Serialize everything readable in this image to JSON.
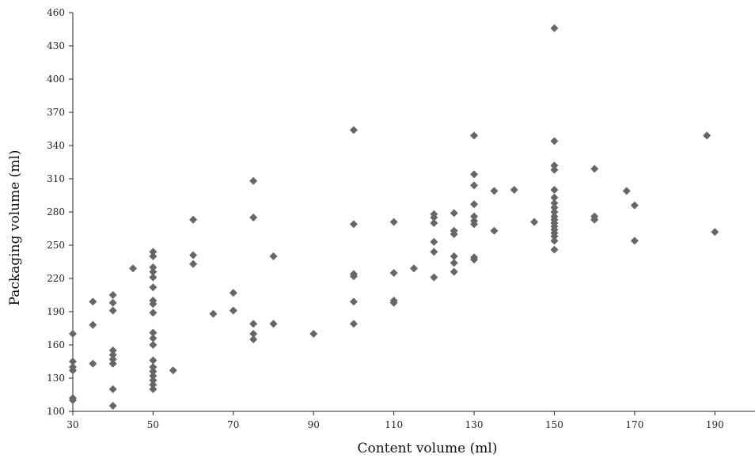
{
  "chart_data": {
    "type": "scatter",
    "title": "",
    "xlabel": "Content volume (ml)",
    "ylabel": "Packaging volume (ml)",
    "xlim": [
      30,
      200
    ],
    "ylim": [
      100,
      460
    ],
    "x_ticks": [
      30,
      50,
      70,
      90,
      110,
      130,
      150,
      170,
      190
    ],
    "y_ticks": [
      100,
      130,
      160,
      190,
      220,
      250,
      280,
      310,
      340,
      370,
      400,
      430,
      460
    ],
    "grid": false,
    "legend": "none",
    "marker": "diamond",
    "marker_color": "#666666",
    "series": [
      {
        "points": [
          [
            30,
            170
          ],
          [
            30,
            145
          ],
          [
            30,
            140
          ],
          [
            30,
            137
          ],
          [
            30,
            112
          ],
          [
            30,
            110
          ],
          [
            35,
            199
          ],
          [
            35,
            178
          ],
          [
            35,
            143
          ],
          [
            40,
            205
          ],
          [
            40,
            198
          ],
          [
            40,
            191
          ],
          [
            40,
            155
          ],
          [
            40,
            151
          ],
          [
            40,
            147
          ],
          [
            40,
            143
          ],
          [
            40,
            120
          ],
          [
            40,
            105
          ],
          [
            45,
            229
          ],
          [
            50,
            244
          ],
          [
            50,
            240
          ],
          [
            50,
            230
          ],
          [
            50,
            226
          ],
          [
            50,
            221
          ],
          [
            50,
            212
          ],
          [
            50,
            200
          ],
          [
            50,
            197
          ],
          [
            50,
            189
          ],
          [
            50,
            171
          ],
          [
            50,
            166
          ],
          [
            50,
            160
          ],
          [
            50,
            146
          ],
          [
            50,
            140
          ],
          [
            50,
            136
          ],
          [
            50,
            132
          ],
          [
            50,
            128
          ],
          [
            50,
            124
          ],
          [
            50,
            120
          ],
          [
            55,
            137
          ],
          [
            60,
            273
          ],
          [
            60,
            241
          ],
          [
            60,
            233
          ],
          [
            65,
            188
          ],
          [
            70,
            207
          ],
          [
            70,
            191
          ],
          [
            75,
            308
          ],
          [
            75,
            275
          ],
          [
            75,
            179
          ],
          [
            75,
            170
          ],
          [
            75,
            165
          ],
          [
            80,
            240
          ],
          [
            80,
            179
          ],
          [
            90,
            170
          ],
          [
            100,
            354
          ],
          [
            100,
            269
          ],
          [
            100,
            224
          ],
          [
            100,
            222
          ],
          [
            100,
            199
          ],
          [
            100,
            179
          ],
          [
            110,
            271
          ],
          [
            110,
            225
          ],
          [
            110,
            200
          ],
          [
            110,
            198
          ],
          [
            115,
            229
          ],
          [
            120,
            278
          ],
          [
            120,
            275
          ],
          [
            120,
            270
          ],
          [
            120,
            253
          ],
          [
            120,
            244
          ],
          [
            120,
            221
          ],
          [
            125,
            279
          ],
          [
            125,
            263
          ],
          [
            125,
            260
          ],
          [
            125,
            240
          ],
          [
            125,
            234
          ],
          [
            125,
            226
          ],
          [
            130,
            349
          ],
          [
            130,
            314
          ],
          [
            130,
            304
          ],
          [
            130,
            287
          ],
          [
            130,
            276
          ],
          [
            130,
            272
          ],
          [
            130,
            269
          ],
          [
            130,
            239
          ],
          [
            130,
            237
          ],
          [
            135,
            299
          ],
          [
            135,
            263
          ],
          [
            140,
            300
          ],
          [
            145,
            271
          ],
          [
            150,
            446
          ],
          [
            150,
            344
          ],
          [
            150,
            322
          ],
          [
            150,
            318
          ],
          [
            150,
            300
          ],
          [
            150,
            293
          ],
          [
            150,
            288
          ],
          [
            150,
            284
          ],
          [
            150,
            280
          ],
          [
            150,
            276
          ],
          [
            150,
            273
          ],
          [
            150,
            270
          ],
          [
            150,
            267
          ],
          [
            150,
            264
          ],
          [
            150,
            261
          ],
          [
            150,
            258
          ],
          [
            150,
            254
          ],
          [
            150,
            246
          ],
          [
            160,
            319
          ],
          [
            160,
            276
          ],
          [
            160,
            273
          ],
          [
            168,
            299
          ],
          [
            170,
            286
          ],
          [
            170,
            254
          ],
          [
            188,
            349
          ],
          [
            190,
            262
          ]
        ]
      }
    ]
  }
}
